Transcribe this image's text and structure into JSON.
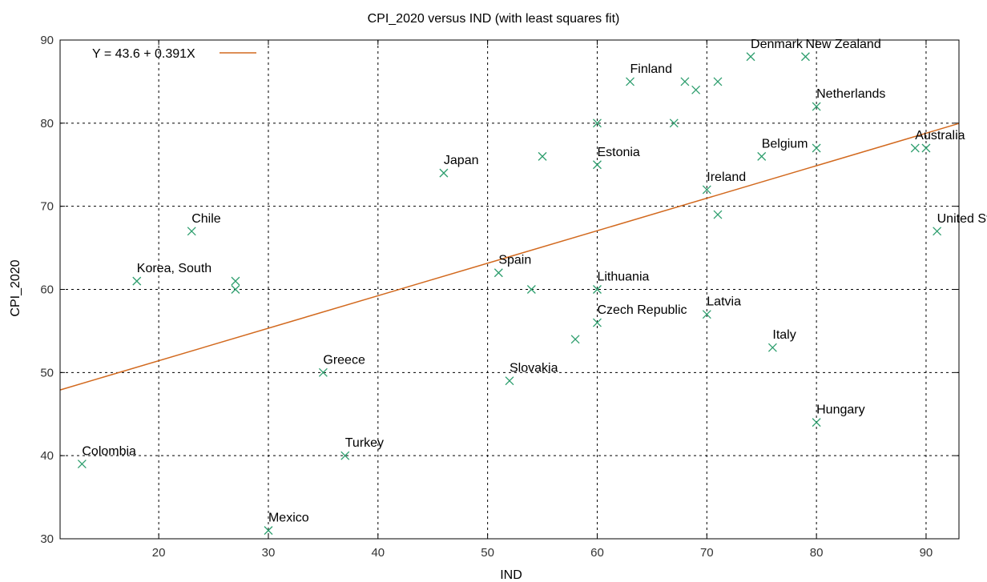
{
  "chart_data": {
    "type": "scatter",
    "title": "CPI_2020 versus IND (with least squares fit)",
    "xlabel": "IND",
    "ylabel": "CPI_2020",
    "xlim": [
      11,
      93
    ],
    "ylim": [
      30,
      90
    ],
    "xticks": [
      20,
      30,
      40,
      50,
      60,
      70,
      80,
      90
    ],
    "yticks": [
      30,
      40,
      50,
      60,
      70,
      80,
      90
    ],
    "grid": true,
    "legend": {
      "placement": "top-left",
      "label": "Y = 43.6 + 0.391X"
    },
    "fit": {
      "intercept": 43.6,
      "slope": 0.391,
      "color": "#d2691e"
    },
    "point_color": "#2e9e6e",
    "points": [
      {
        "x": 13,
        "y": 39,
        "label": "Colombia"
      },
      {
        "x": 18,
        "y": 61,
        "label": "Korea, South"
      },
      {
        "x": 23,
        "y": 67,
        "label": "Chile"
      },
      {
        "x": 27,
        "y": 61,
        "label": ""
      },
      {
        "x": 27,
        "y": 60,
        "label": ""
      },
      {
        "x": 30,
        "y": 31,
        "label": "Mexico"
      },
      {
        "x": 35,
        "y": 50,
        "label": "Greece"
      },
      {
        "x": 37,
        "y": 40,
        "label": "Turkey"
      },
      {
        "x": 46,
        "y": 74,
        "label": "Japan"
      },
      {
        "x": 51,
        "y": 62,
        "label": "Spain"
      },
      {
        "x": 52,
        "y": 49,
        "label": "Slovakia"
      },
      {
        "x": 54,
        "y": 60,
        "label": ""
      },
      {
        "x": 55,
        "y": 76,
        "label": ""
      },
      {
        "x": 58,
        "y": 54,
        "label": ""
      },
      {
        "x": 60,
        "y": 80,
        "label": ""
      },
      {
        "x": 60,
        "y": 75,
        "label": "Estonia"
      },
      {
        "x": 60,
        "y": 60,
        "label": "Lithuania"
      },
      {
        "x": 60,
        "y": 56,
        "label": "Czech Republic"
      },
      {
        "x": 63,
        "y": 85,
        "label": "Finland"
      },
      {
        "x": 67,
        "y": 80,
        "label": ""
      },
      {
        "x": 68,
        "y": 85,
        "label": ""
      },
      {
        "x": 69,
        "y": 84,
        "label": ""
      },
      {
        "x": 70,
        "y": 72,
        "label": "Ireland"
      },
      {
        "x": 70,
        "y": 57,
        "label": "Latvia"
      },
      {
        "x": 71,
        "y": 85,
        "label": ""
      },
      {
        "x": 71,
        "y": 69,
        "label": ""
      },
      {
        "x": 74,
        "y": 88,
        "label": "Denmark"
      },
      {
        "x": 75,
        "y": 76,
        "label": "Belgium"
      },
      {
        "x": 76,
        "y": 53,
        "label": "Italy"
      },
      {
        "x": 79,
        "y": 88,
        "label": "New Zealand"
      },
      {
        "x": 80,
        "y": 82,
        "label": "Netherlands"
      },
      {
        "x": 80,
        "y": 77,
        "label": ""
      },
      {
        "x": 80,
        "y": 44,
        "label": "Hungary"
      },
      {
        "x": 89,
        "y": 77,
        "label": "Australia"
      },
      {
        "x": 90,
        "y": 77,
        "label": ""
      },
      {
        "x": 91,
        "y": 67,
        "label": "United States"
      }
    ]
  }
}
